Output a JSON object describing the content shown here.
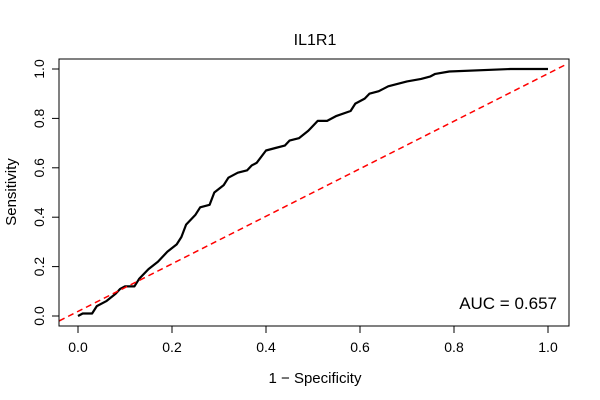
{
  "chart_data": {
    "type": "line",
    "title": "IL1R1",
    "xlabel": "1 − Specificity",
    "ylabel": "Sensitivity",
    "xlim": [
      0,
      1
    ],
    "ylim": [
      0,
      1
    ],
    "x_ticks": [
      0.0,
      0.2,
      0.4,
      0.6,
      0.8,
      1.0
    ],
    "x_tick_labels": [
      "0.0",
      "0.2",
      "0.4",
      "0.6",
      "0.8",
      "1.0"
    ],
    "y_ticks": [
      0.0,
      0.2,
      0.4,
      0.6,
      0.8,
      1.0
    ],
    "y_tick_labels": [
      "0.0",
      "0.2",
      "0.4",
      "0.6",
      "0.8",
      "1.0"
    ],
    "annotation": "AUC = 0.657",
    "series": [
      {
        "name": "ROC curve",
        "color": "#000000",
        "style": "solid",
        "points": [
          [
            0.0,
            0.0
          ],
          [
            0.01,
            0.01
          ],
          [
            0.03,
            0.01
          ],
          [
            0.04,
            0.04
          ],
          [
            0.06,
            0.06
          ],
          [
            0.08,
            0.09
          ],
          [
            0.09,
            0.11
          ],
          [
            0.1,
            0.12
          ],
          [
            0.12,
            0.12
          ],
          [
            0.13,
            0.15
          ],
          [
            0.15,
            0.19
          ],
          [
            0.17,
            0.22
          ],
          [
            0.19,
            0.26
          ],
          [
            0.21,
            0.29
          ],
          [
            0.22,
            0.32
          ],
          [
            0.23,
            0.37
          ],
          [
            0.25,
            0.41
          ],
          [
            0.26,
            0.44
          ],
          [
            0.28,
            0.45
          ],
          [
            0.29,
            0.5
          ],
          [
            0.31,
            0.53
          ],
          [
            0.32,
            0.56
          ],
          [
            0.34,
            0.58
          ],
          [
            0.36,
            0.59
          ],
          [
            0.37,
            0.61
          ],
          [
            0.38,
            0.62
          ],
          [
            0.4,
            0.67
          ],
          [
            0.42,
            0.68
          ],
          [
            0.44,
            0.69
          ],
          [
            0.45,
            0.71
          ],
          [
            0.47,
            0.72
          ],
          [
            0.49,
            0.75
          ],
          [
            0.51,
            0.79
          ],
          [
            0.53,
            0.79
          ],
          [
            0.55,
            0.81
          ],
          [
            0.58,
            0.83
          ],
          [
            0.59,
            0.86
          ],
          [
            0.61,
            0.88
          ],
          [
            0.62,
            0.9
          ],
          [
            0.64,
            0.91
          ],
          [
            0.66,
            0.93
          ],
          [
            0.7,
            0.95
          ],
          [
            0.73,
            0.96
          ],
          [
            0.75,
            0.97
          ],
          [
            0.76,
            0.98
          ],
          [
            0.79,
            0.99
          ],
          [
            0.92,
            1.0
          ],
          [
            1.0,
            1.0
          ]
        ]
      },
      {
        "name": "Chance line",
        "color": "#ff0000",
        "style": "dashed",
        "points": [
          [
            -0.04,
            -0.02
          ],
          [
            1.04,
            1.02
          ]
        ]
      }
    ]
  }
}
